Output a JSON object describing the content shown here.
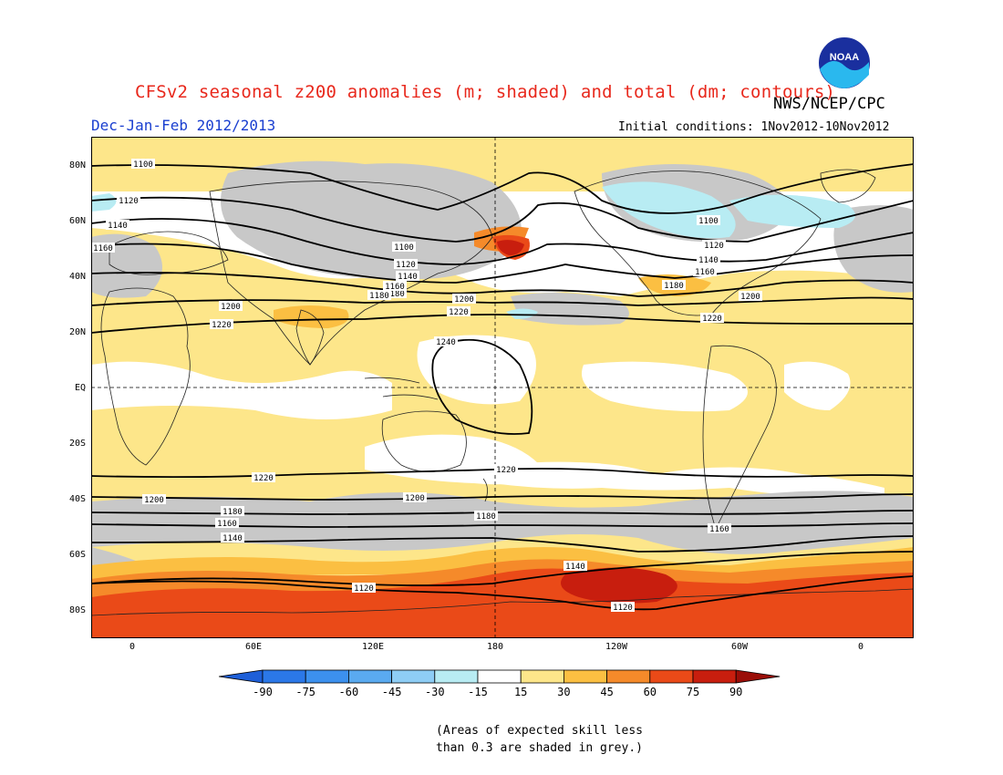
{
  "title": "CFSv2 seasonal z200 anomalies (m; shaded) and total (dm; contours)",
  "agency": "NWS/NCEP/CPC",
  "logo_text": "NOAA",
  "season": "Dec-Jan-Feb 2012/2013",
  "initial_conditions": "Initial conditions: 1Nov2012-10Nov2012",
  "lat_labels": [
    "80N",
    "60N",
    "40N",
    "20N",
    "EQ",
    "20S",
    "40S",
    "60S",
    "80S"
  ],
  "lon_labels": [
    "0",
    "60E",
    "120E",
    "180",
    "120W",
    "60W",
    "0"
  ],
  "contour_labels": [
    "1100",
    "1120",
    "1140",
    "1160",
    "1180",
    "1200",
    "1220",
    "1240",
    "1100",
    "1120",
    "1140",
    "1160",
    "1180",
    "1200",
    "1220",
    "1220",
    "1200",
    "1180",
    "1160",
    "1140",
    "1120",
    "1220",
    "1200",
    "1180",
    "1160",
    "1140",
    "1120",
    "1100",
    "1120",
    "1140",
    "1160",
    "1200",
    "1220",
    "1180"
  ],
  "colorbar": {
    "labels": [
      "-90",
      "-75",
      "-60",
      "-45",
      "-30",
      "-15",
      "15",
      "30",
      "45",
      "60",
      "75",
      "90"
    ],
    "colors": [
      "#1e5fd8",
      "#2b78e8",
      "#3c90ee",
      "#5aaaf0",
      "#8ecdf5",
      "#b8ecf3",
      "#ffffff",
      "#fde68a",
      "#fbbf42",
      "#f58a2a",
      "#ea4a18",
      "#c81e0e",
      "#9a0e08"
    ]
  },
  "note": [
    "(Areas of expected skill less",
    "than 0.3 are shaded in grey.)"
  ]
}
